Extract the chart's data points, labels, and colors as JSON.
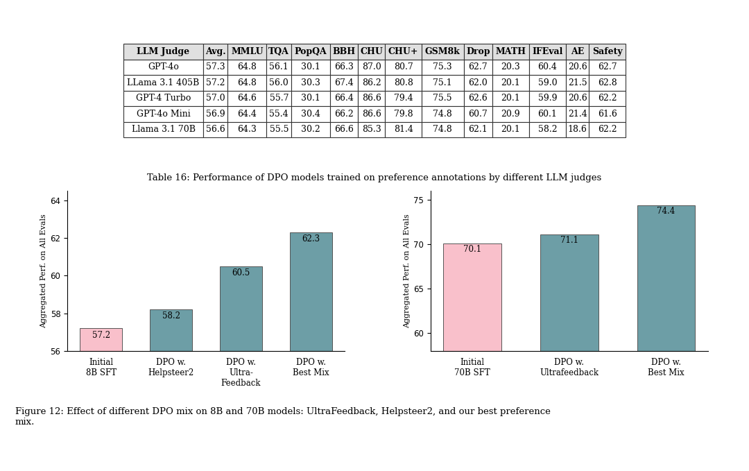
{
  "table_caption": "Table 16: Performance of DPO models trained on preference annotations by different LLM judges",
  "figure_caption": "Figure 12: Effect of different DPO mix on 8B and 70B models: UltraFeedback, Helpsteer2, and our best preference\nmix.",
  "table_headers": [
    "LLM Judge",
    "Avg.",
    "MMLU",
    "TQA",
    "PopQA",
    "BBH",
    "CHU",
    "CHU+",
    "GSM8k",
    "Drop",
    "MATH",
    "IFEval",
    "AE",
    "Safety"
  ],
  "table_rows": [
    [
      "GPT-4o",
      "57.3",
      "64.8",
      "56.1",
      "30.1",
      "66.3",
      "87.0",
      "80.7",
      "75.3",
      "62.7",
      "20.3",
      "60.4",
      "20.6",
      "62.7"
    ],
    [
      "LLama 3.1 405B",
      "57.2",
      "64.8",
      "56.0",
      "30.3",
      "67.4",
      "86.2",
      "80.8",
      "75.1",
      "62.0",
      "20.1",
      "59.0",
      "21.5",
      "62.8"
    ],
    [
      "GPT-4 Turbo",
      "57.0",
      "64.6",
      "55.7",
      "30.1",
      "66.4",
      "86.6",
      "79.4",
      "75.5",
      "62.6",
      "20.1",
      "59.9",
      "20.6",
      "62.2"
    ],
    [
      "GPT-4o Mini",
      "56.9",
      "64.4",
      "55.4",
      "30.4",
      "66.2",
      "86.6",
      "79.8",
      "74.8",
      "60.7",
      "20.9",
      "60.1",
      "21.4",
      "61.6"
    ],
    [
      "Llama 3.1 70B",
      "56.6",
      "64.3",
      "55.5",
      "30.2",
      "66.6",
      "85.3",
      "81.4",
      "74.8",
      "62.1",
      "20.1",
      "58.2",
      "18.6",
      "62.2"
    ]
  ],
  "chart_left": {
    "categories": [
      "Initial\n8B SFT",
      "DPO w.\nHelpsteer2",
      "DPO w.\nUltra-\nFeedback",
      "DPO w.\nBest Mix"
    ],
    "values": [
      57.2,
      58.2,
      60.5,
      62.3
    ],
    "colors": [
      "#f9c0cb",
      "#6d9ea6",
      "#6d9ea6",
      "#6d9ea6"
    ],
    "ylim": [
      56,
      64.5
    ],
    "yticks": [
      56,
      58,
      60,
      62,
      64
    ],
    "ylabel": "Aggregated Perf. on All Evals"
  },
  "chart_right": {
    "categories": [
      "Initial\n70B SFT",
      "DPO w.\nUltrafeedback",
      "DPO w.\nBest Mix"
    ],
    "values": [
      70.1,
      71.1,
      74.4
    ],
    "colors": [
      "#f9c0cb",
      "#6d9ea6",
      "#6d9ea6"
    ],
    "ylim": [
      58,
      76
    ],
    "yticks": [
      60,
      65,
      70,
      75
    ],
    "ylabel": "Aggregated Perf. on All Evals"
  },
  "bg_color": "#ffffff",
  "text_color": "#000000",
  "font_family": "DejaVu Serif",
  "bar_label_fontsize": 8.5,
  "axis_fontsize": 8,
  "tick_fontsize": 8.5,
  "table_fontsize": 9,
  "caption_fontsize": 9.5,
  "fig_caption_fontsize": 9.5
}
